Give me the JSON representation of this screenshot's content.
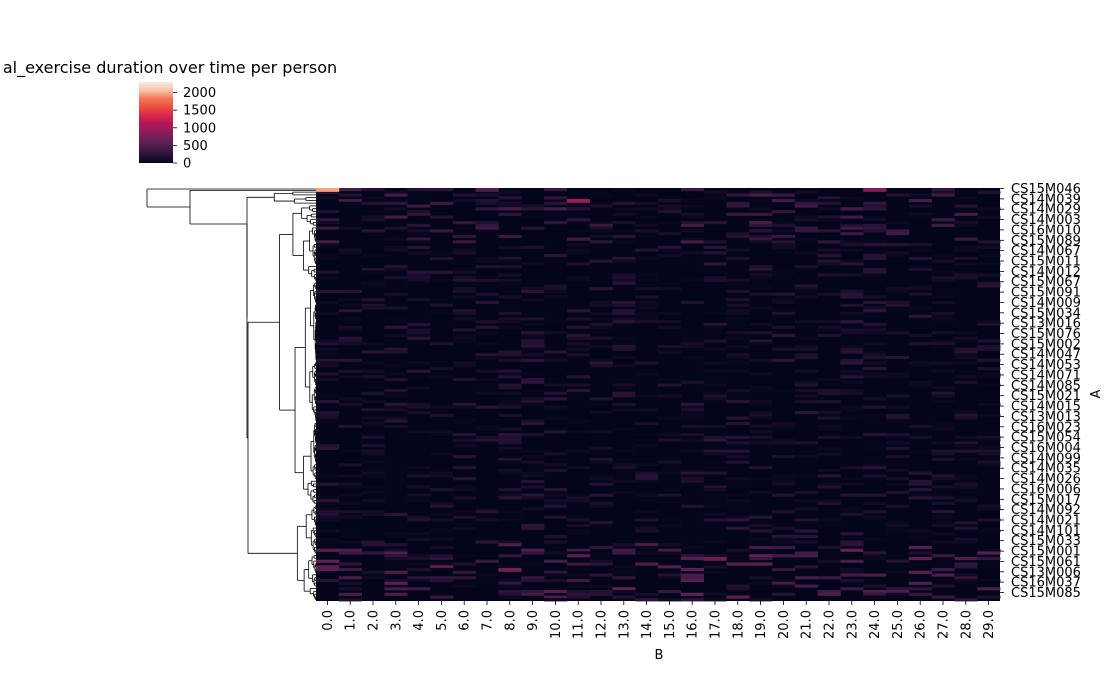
{
  "chart_data": {
    "type": "heatmap",
    "title": "al_exercise duration over time per person",
    "xlabel": "B",
    "ylabel": "A",
    "columns": [
      "0.0",
      "1.0",
      "2.0",
      "3.0",
      "4.0",
      "5.0",
      "6.0",
      "7.0",
      "8.0",
      "9.0",
      "10.0",
      "11.0",
      "12.0",
      "13.0",
      "14.0",
      "15.0",
      "16.0",
      "17.0",
      "18.0",
      "19.0",
      "20.0",
      "21.0",
      "22.0",
      "23.0",
      "24.0",
      "25.0",
      "26.0",
      "27.0",
      "28.0",
      "29.0"
    ],
    "row_labels": [
      "CS15M046",
      "CS14M039",
      "CS14M029",
      "CS14M003",
      "CS16M010",
      "CS15M089",
      "CS14M067",
      "CS15M011",
      "CS14M012",
      "CS15M067",
      "CS15M091",
      "CS14M009",
      "CS15M034",
      "CS13M016",
      "CS15M076",
      "CS15M002",
      "CS14M047",
      "CS14M053",
      "CS14M071",
      "CS14M085",
      "CS15M021",
      "CS14M015",
      "CS13M013",
      "CS16M023",
      "CS15M054",
      "CS16M004",
      "CS14M099",
      "CS14M035",
      "CS14M026",
      "CS16M006",
      "CS15M017",
      "CS14M092",
      "CS14M021",
      "CS14M101",
      "CS15M033",
      "CS15M001",
      "CS15M061",
      "CS13M006",
      "CS16M037",
      "CS15M085"
    ],
    "colorbar": {
      "ticks": [
        0,
        500,
        1000,
        1500,
        2000
      ],
      "vmin": 0,
      "vmax": 2300
    },
    "colormap": [
      "#03051a",
      "#2b1338",
      "#4c1d4b",
      "#6f1f57",
      "#951c5b",
      "#b91657",
      "#da2d49",
      "#ee5140",
      "#f47a5c",
      "#f6a07d",
      "#f8c5aa",
      "#faebdd"
    ],
    "notable_cells": [
      {
        "row": "CS15M046",
        "col": "0.0",
        "value": 1900
      },
      {
        "row": "CS15M046",
        "col": "24.0",
        "value": 700
      },
      {
        "row": "CS15M046",
        "col": "7.0",
        "value": 450
      },
      {
        "row": "CS14M039",
        "col": "11.0",
        "value": 900
      },
      {
        "row": "CS15M001",
        "col": "17.0",
        "value": 600
      },
      {
        "row": "CS15M061",
        "col": "8.0",
        "value": 650
      }
    ],
    "n_rows": 150,
    "grid": false
  }
}
